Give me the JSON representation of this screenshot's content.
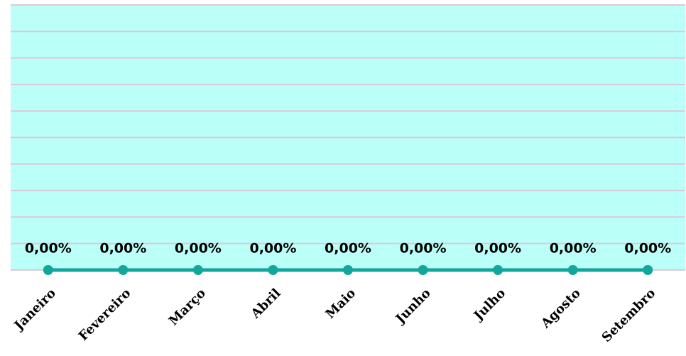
{
  "chart_data": {
    "type": "line",
    "categories": [
      "Janeiro",
      "Fevereiro",
      "Março",
      "Abril",
      "Maio",
      "Junho",
      "Julho",
      "Agosto",
      "Setembro"
    ],
    "series": [
      {
        "color": "#13a69b",
        "values": [
          0,
          0,
          0,
          0,
          0,
          0,
          0,
          0,
          0
        ],
        "value_labels": [
          "0,00%",
          "0,00%",
          "0,00%",
          "0,00%",
          "0,00%",
          "0,00%",
          "0,00%",
          "0,00%",
          "0,00%"
        ]
      }
    ],
    "ylim": [
      0,
      10
    ],
    "yticks": [
      0,
      1,
      2,
      3,
      4,
      5,
      6,
      7,
      8,
      9,
      10
    ],
    "grid": true,
    "background": "#bafff8",
    "grid_color": "#dcc8d6"
  }
}
